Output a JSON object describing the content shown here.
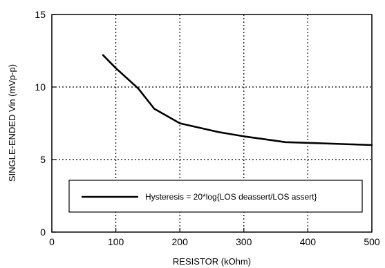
{
  "chart_data": {
    "type": "line",
    "xlabel": "RESISTOR (kOhm)",
    "ylabel": "SINGLE-ENDED Vin (mVp-p)",
    "xlim": [
      0,
      500
    ],
    "ylim": [
      0,
      15
    ],
    "x_ticks": [
      0,
      100,
      200,
      300,
      400,
      500
    ],
    "y_ticks": [
      0,
      5,
      10,
      15
    ],
    "x_tick_labels": [
      "0",
      "100",
      "200",
      "300",
      "400",
      "500"
    ],
    "y_tick_labels": [
      "0",
      "5",
      "10",
      "15"
    ],
    "grid": true,
    "grid_style": "dotted",
    "legend_placement": "bottom-center",
    "series": [
      {
        "name": "Hysteresis = 20*log{LOS deassert/LOS assert}",
        "color": "#000000",
        "x": [
          80,
          100,
          135,
          160,
          200,
          260,
          300,
          365,
          400,
          500
        ],
        "y": [
          12.2,
          11.3,
          9.9,
          8.5,
          7.5,
          6.9,
          6.6,
          6.2,
          6.15,
          6.0
        ]
      }
    ]
  }
}
